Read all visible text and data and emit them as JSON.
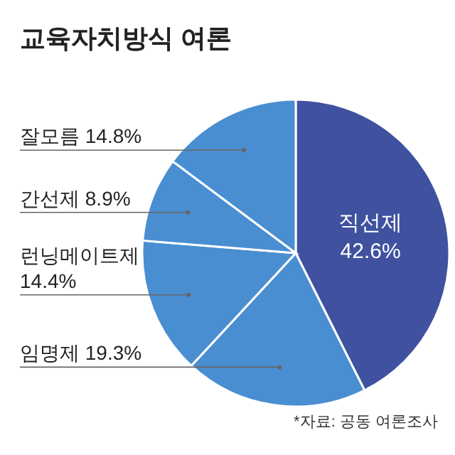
{
  "chart_data": {
    "type": "pie",
    "title": "교육자치방식 여론",
    "categories": [
      "직선제",
      "임명제",
      "런닝메이트제",
      "간선제",
      "잘모름"
    ],
    "values": [
      42.6,
      19.3,
      14.4,
      8.9,
      14.8
    ],
    "colors": [
      "#3f519f",
      "#4a8ed2",
      "#4a8ed2",
      "#4a8ed2",
      "#4a8ed2"
    ],
    "value_labels": [
      "42.6%",
      "19.3%",
      "14.4%",
      "8.9%",
      "14.8%"
    ],
    "annotations": [
      "*자료: 공동 여론조사"
    ]
  }
}
